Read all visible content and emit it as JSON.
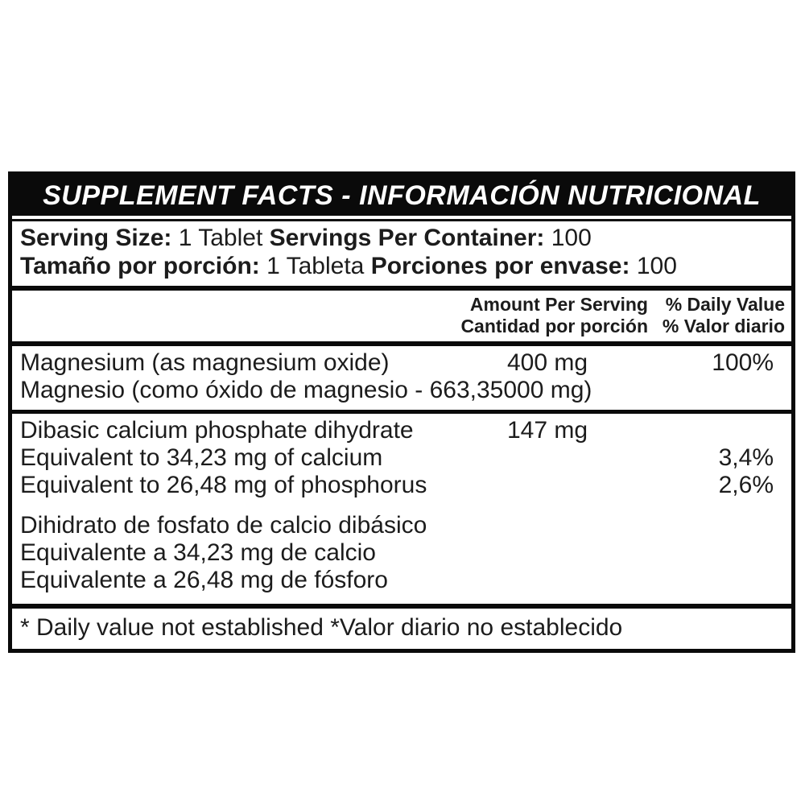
{
  "label": {
    "title": "SUPPLEMENT FACTS - INFORMACIÓN NUTRICIONAL",
    "serving": {
      "en": {
        "size_label": "Serving Size:",
        "size_value": "1 Tablet",
        "per_container_label": "Servings Per Container:",
        "per_container_value": "100"
      },
      "es": {
        "size_label": "Tamaño por porción:",
        "size_value": "1 Tableta",
        "per_container_label": "Porciones por envase:",
        "per_container_value": "100"
      }
    },
    "columns": {
      "amount_en": "Amount Per Serving",
      "amount_es": "Cantidad por porción",
      "dv_en": "% Daily Value",
      "dv_es": "% Valor diario"
    },
    "nutrients": [
      {
        "lines": [
          {
            "name": "Magnesium (as magnesium oxide)",
            "amount": "400 mg",
            "dv": "100%"
          },
          {
            "name": "Magnesio (como óxido de magnesio - 663,35000 mg)",
            "amount": "",
            "dv": ""
          }
        ]
      },
      {
        "lines": [
          {
            "name": "Dibasic calcium phosphate dihydrate",
            "amount": "147 mg",
            "dv": ""
          },
          {
            "name": "Equivalent to 34,23 mg of calcium",
            "amount": "",
            "dv": "3,4%"
          },
          {
            "name": "Equivalent to 26,48 mg of phosphorus",
            "amount": "",
            "dv": "2,6%"
          },
          {
            "name": "Dihidrato de fosfato de calcio dibásico",
            "amount": "",
            "dv": ""
          },
          {
            "name": "Equivalente a 34,23 mg de calcio",
            "amount": "",
            "dv": ""
          },
          {
            "name": "Equivalente a 26,48 mg de fósforo",
            "amount": "",
            "dv": ""
          }
        ]
      }
    ],
    "footnote": "* Daily value not established *Valor diario no establecido",
    "colors": {
      "background": "#ffffff",
      "border": "#0a0a0a",
      "header_bg": "#0a0a0a",
      "header_text": "#ffffff",
      "body_text": "#1c1c1c"
    }
  }
}
